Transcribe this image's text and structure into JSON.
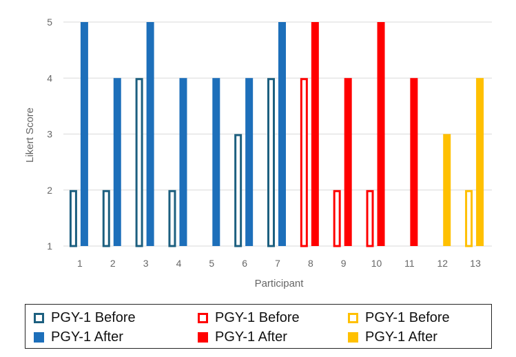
{
  "chart_data": {
    "type": "bar",
    "title": "",
    "xlabel": "Participant",
    "ylabel": "Likert Score",
    "ylim": [
      1,
      5
    ],
    "yticks": [
      1,
      2,
      3,
      4,
      5
    ],
    "grid": true,
    "legend_placement": "bottom",
    "categories": [
      "1",
      "2",
      "3",
      "4",
      "5",
      "6",
      "7",
      "8",
      "9",
      "10",
      "11",
      "12",
      "13"
    ],
    "groups": [
      {
        "color": "#1c5f7f",
        "after_color": "#1d6fba",
        "participants": [
          "1",
          "2",
          "3",
          "4",
          "5",
          "6",
          "7"
        ]
      },
      {
        "color": "#ff0000",
        "after_color": "#ff0000",
        "participants": [
          "8",
          "9",
          "10",
          "11"
        ]
      },
      {
        "color": "#ffc000",
        "after_color": "#ffc000",
        "participants": [
          "12",
          "13"
        ]
      }
    ],
    "series": [
      {
        "name": "PGY-1 Before",
        "style": "outline",
        "values": [
          2,
          2,
          4,
          2,
          null,
          3,
          4,
          4,
          2,
          2,
          null,
          null,
          2
        ]
      },
      {
        "name": "PGY-1 After",
        "style": "filled",
        "values": [
          5,
          4,
          5,
          4,
          4,
          4,
          5,
          5,
          4,
          5,
          4,
          3,
          4
        ]
      }
    ]
  },
  "legend": [
    {
      "label": "PGY-1 Before",
      "color": "#1c5f7f",
      "style": "outline"
    },
    {
      "label": "PGY-1 Before",
      "color": "#ff0000",
      "style": "outline"
    },
    {
      "label": "PGY-1 Before",
      "color": "#ffc000",
      "style": "outline"
    },
    {
      "label": "PGY-1 After",
      "color": "#1d6fba",
      "style": "filled"
    },
    {
      "label": "PGY-1 After",
      "color": "#ff0000",
      "style": "filled"
    },
    {
      "label": "PGY-1 After",
      "color": "#ffc000",
      "style": "filled"
    }
  ]
}
